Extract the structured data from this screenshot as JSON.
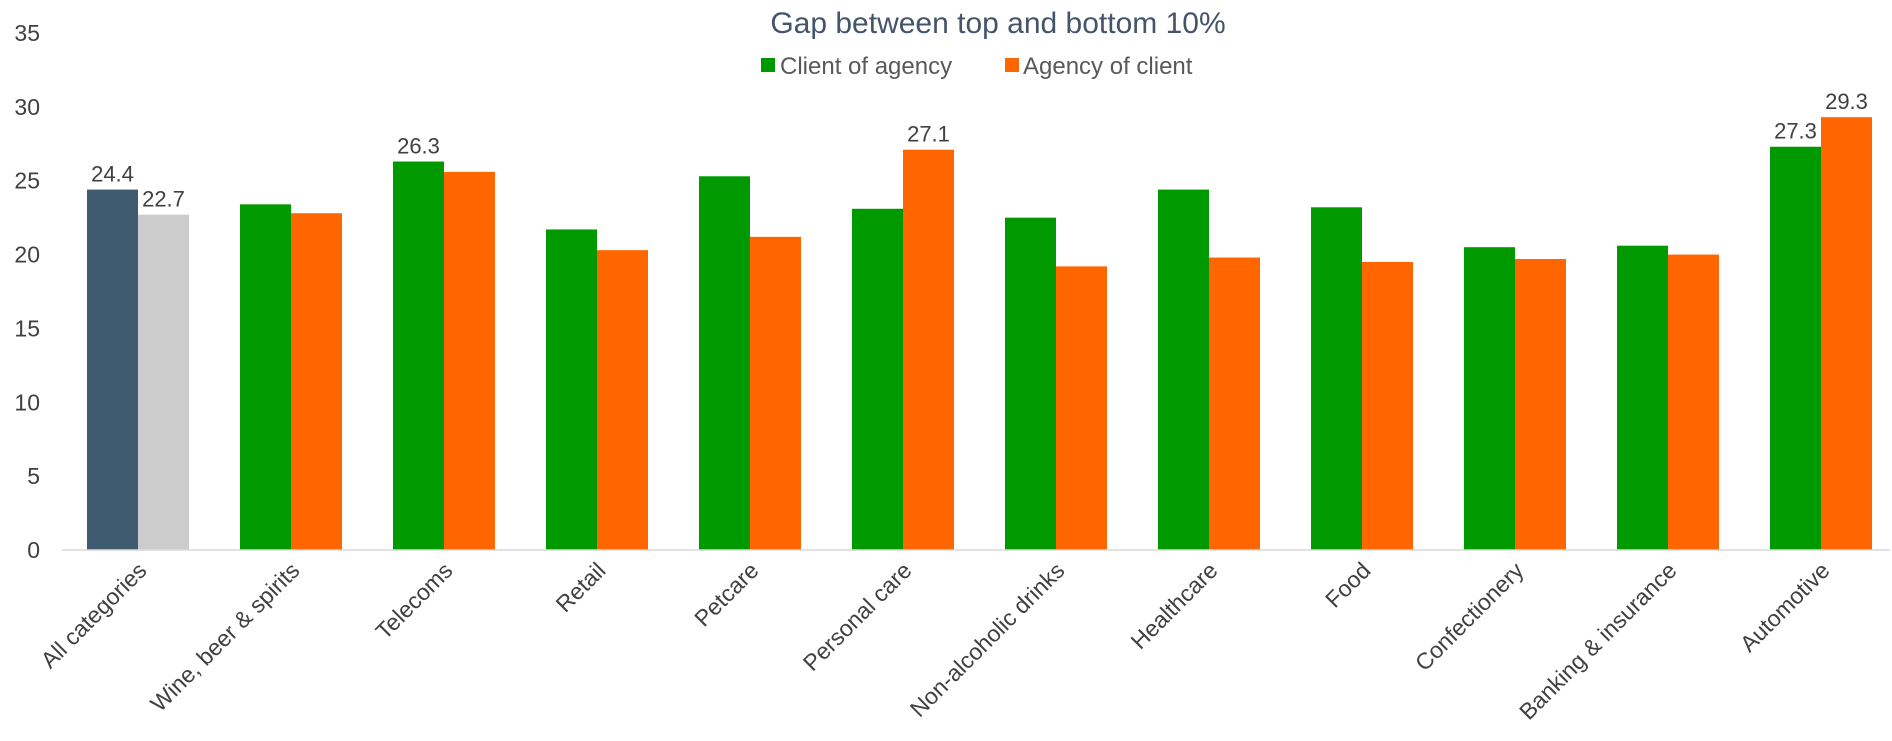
{
  "chart_data": {
    "type": "bar",
    "title": "Gap between top and bottom 10%",
    "xlabel": "",
    "ylabel": "",
    "ylim": [
      0,
      35
    ],
    "yticks": [
      0,
      5,
      10,
      15,
      20,
      25,
      30,
      35
    ],
    "grid": false,
    "legend_position": "top-center",
    "categories": [
      "All categories",
      "Wine, beer & spirits",
      "Telecoms",
      "Retail",
      "Petcare",
      "Personal care",
      "Non-alcoholic drinks",
      "Healthcare",
      "Food",
      "Confectionery",
      "Banking & insurance",
      "Automotive"
    ],
    "series": [
      {
        "name": "Client of agency",
        "color": "#009900",
        "first_bar_color": "#3E5B6F",
        "values": [
          24.4,
          23.4,
          26.3,
          21.7,
          25.3,
          23.1,
          22.5,
          24.4,
          23.2,
          20.5,
          20.6,
          27.3
        ]
      },
      {
        "name": "Agency of client",
        "color": "#FF6600",
        "first_bar_color": "#CCCCCC",
        "values": [
          22.7,
          22.8,
          25.6,
          20.3,
          21.2,
          27.1,
          19.2,
          19.8,
          19.5,
          19.7,
          20.0,
          29.3
        ]
      }
    ],
    "data_labels": [
      {
        "category": "All categories",
        "series": "Client of agency",
        "text": "24.4"
      },
      {
        "category": "All categories",
        "series": "Agency of client",
        "text": "22.7"
      },
      {
        "category": "Telecoms",
        "series": "Client of agency",
        "text": "26.3"
      },
      {
        "category": "Personal care",
        "series": "Agency of client",
        "text": "27.1"
      },
      {
        "category": "Automotive",
        "series": "Client of agency",
        "text": "27.3"
      },
      {
        "category": "Automotive",
        "series": "Agency of client",
        "text": "29.3"
      }
    ],
    "colors": {
      "title": "#44546A",
      "axis_line": "#D9D9D9",
      "text": "#404040"
    }
  }
}
